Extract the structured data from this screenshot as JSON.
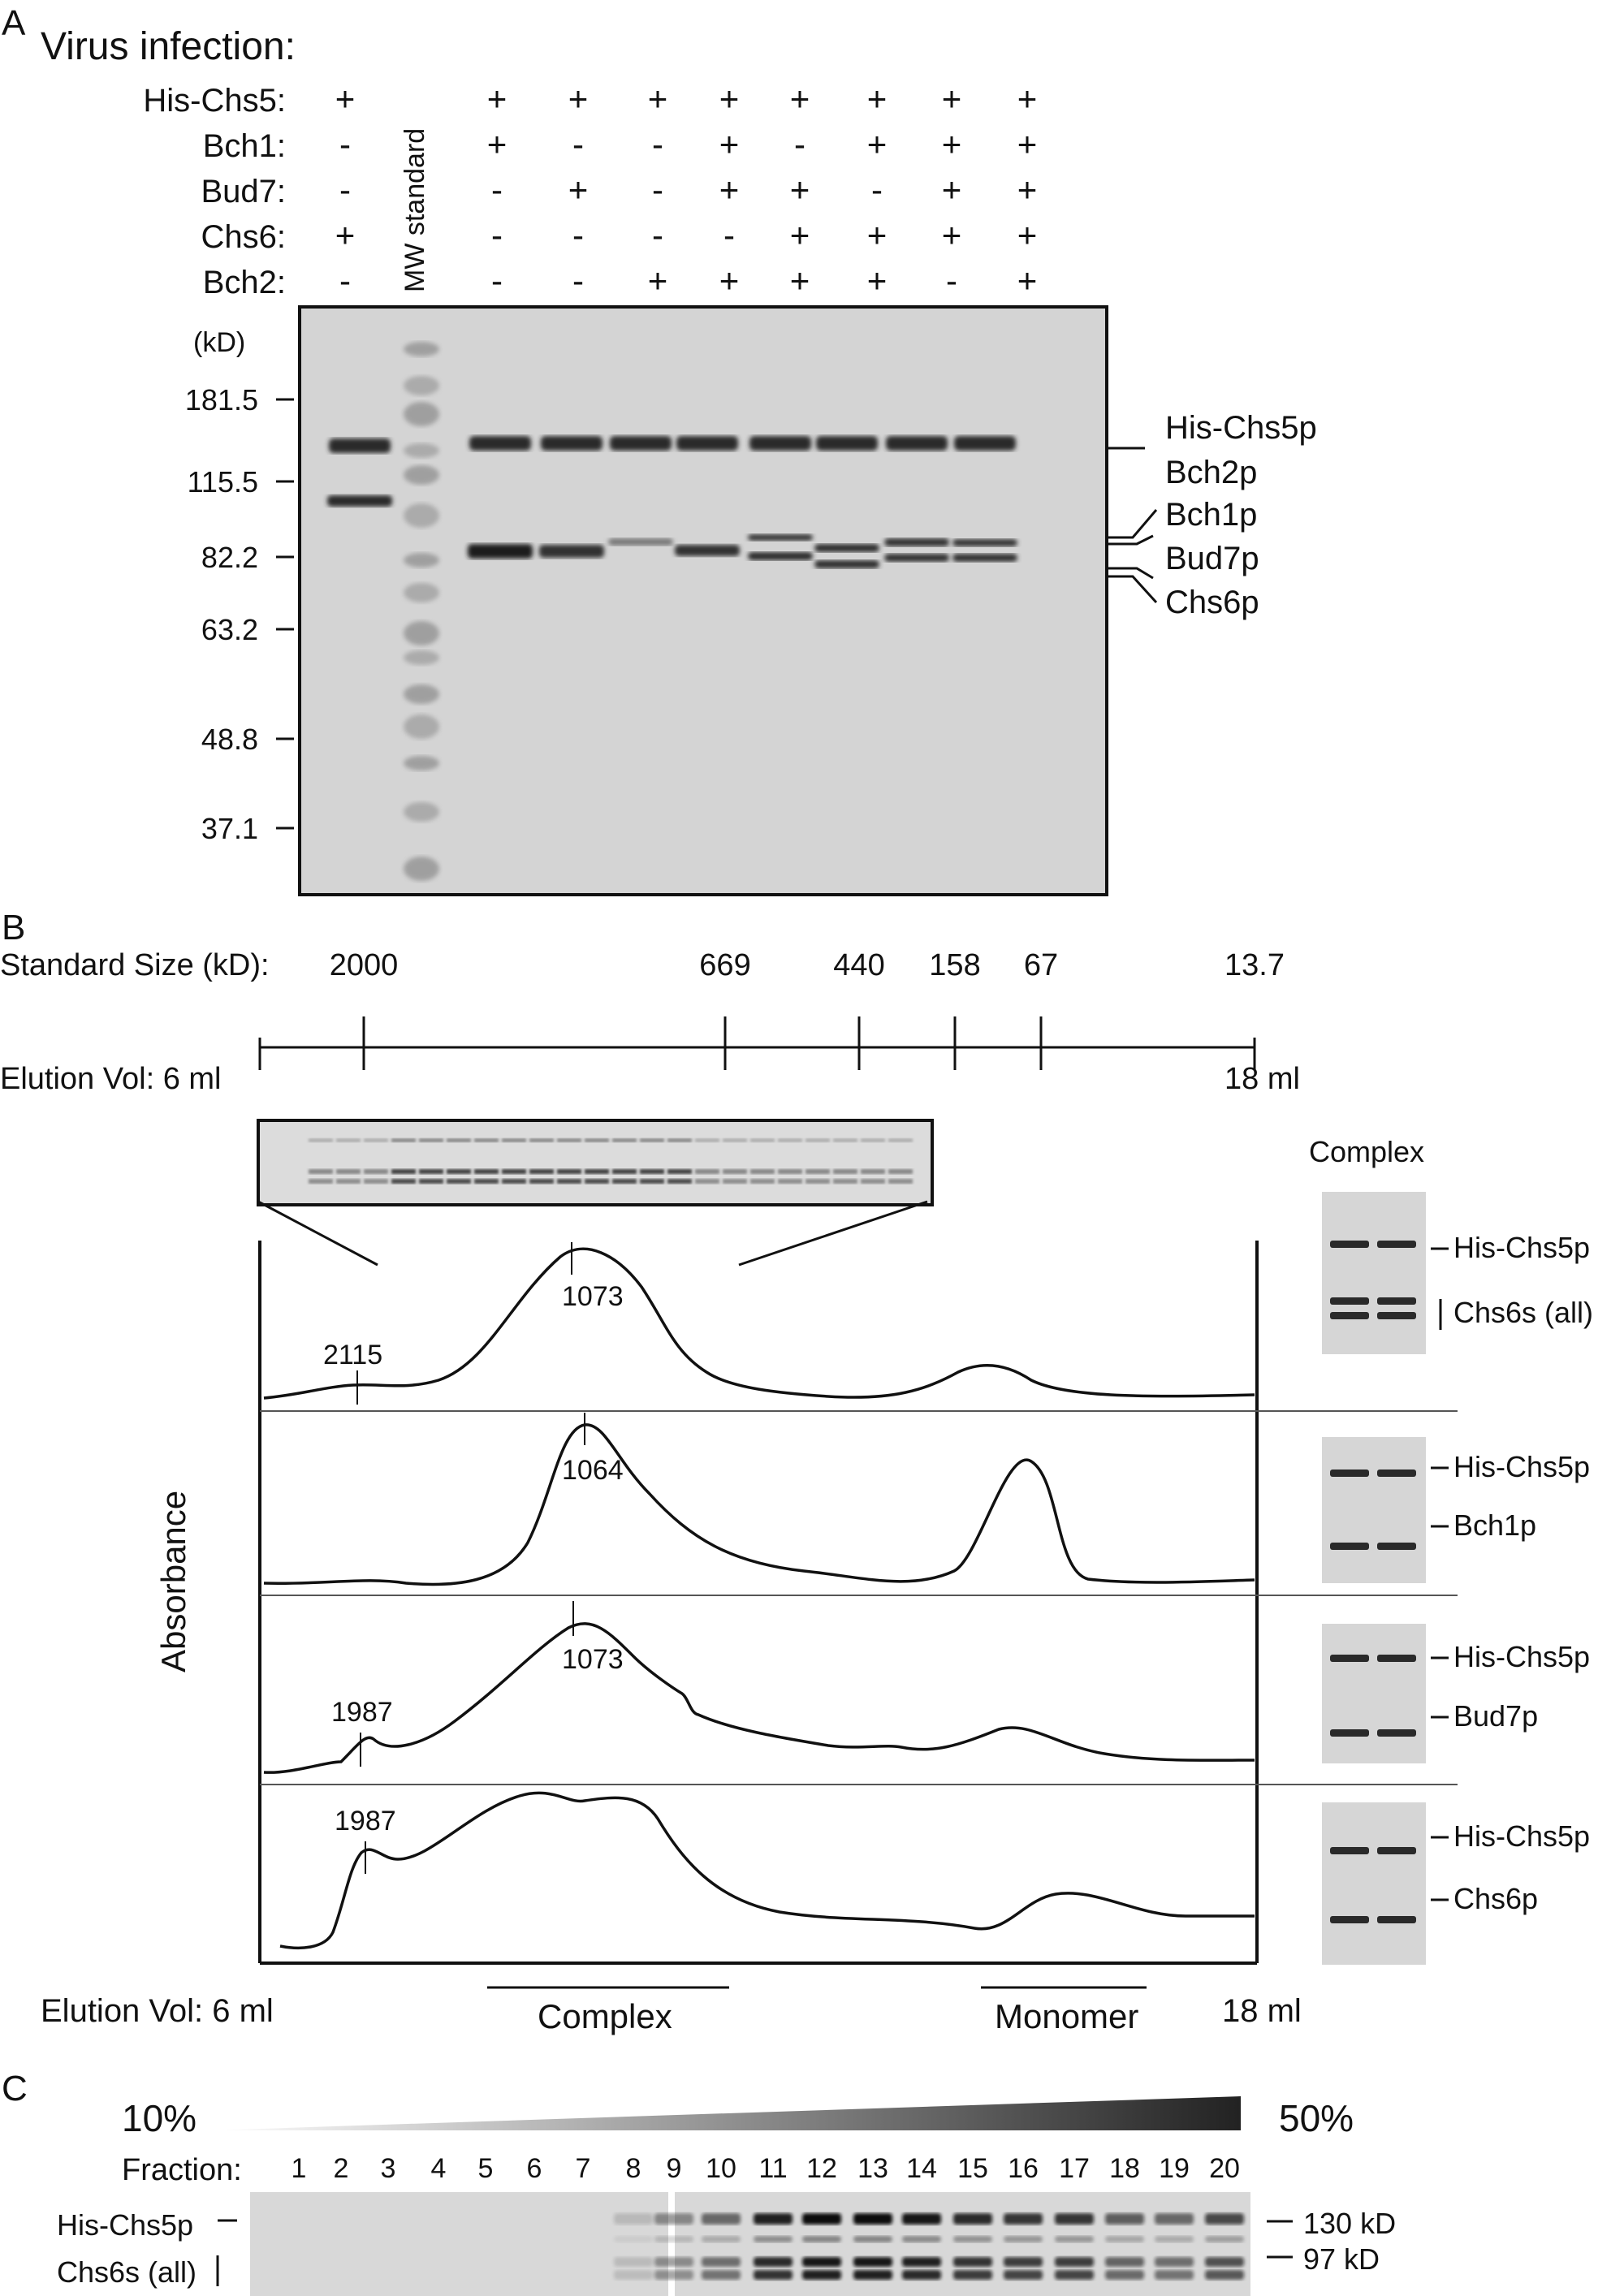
{
  "panelA": {
    "letter": "A",
    "title": "Virus infection:",
    "condition_rows": [
      {
        "label": "His-Chs5:",
        "signs": [
          "+",
          "+",
          "+",
          "+",
          "+",
          "+",
          "+",
          "+",
          "+"
        ]
      },
      {
        "label": "Bch1:",
        "signs": [
          "-",
          "+",
          "-",
          "-",
          "+",
          "-",
          "+",
          "+",
          "+"
        ]
      },
      {
        "label": "Bud7:",
        "signs": [
          "-",
          "-",
          "+",
          "-",
          "+",
          "+",
          "-",
          "+",
          "+"
        ]
      },
      {
        "label": "Chs6:",
        "signs": [
          "+",
          "-",
          "-",
          "-",
          "-",
          "+",
          "+",
          "+",
          "+"
        ]
      },
      {
        "label": "Bch2:",
        "signs": [
          "-",
          "-",
          "-",
          "+",
          "+",
          "+",
          "+",
          "-",
          "+"
        ]
      }
    ],
    "mw_standard_label": "MW standard",
    "kd_unit": "(kD)",
    "mw_markers": [
      "181.5",
      "115.5",
      "82.2",
      "63.2",
      "48.8",
      "37.1"
    ],
    "band_labels": [
      "His-Chs5p",
      "Bch2p",
      "Bch1p",
      "Bud7p",
      "Chs6p"
    ]
  },
  "panelB": {
    "letter": "B",
    "standard_size_label": "Standard Size  (kD):",
    "standard_sizes": [
      "2000",
      "669",
      "440",
      "158",
      "67",
      "13.7"
    ],
    "elution_top_left": "Elution Vol: 6 ml",
    "elution_top_right": "18 ml",
    "elution_bottom_left": "Elution Vol: 6 ml",
    "elution_bottom_right": "18 ml",
    "y_axis_label": "Absorbance",
    "complex_header": "Complex",
    "region_complex": "Complex",
    "region_monomer": "Monomer",
    "traces": [
      {
        "peak_labels": [
          "2115",
          "1073"
        ],
        "gel_labels": [
          "His-Chs5p",
          "Chs6s (all)"
        ]
      },
      {
        "peak_labels": [
          "1064"
        ],
        "gel_labels": [
          "His-Chs5p",
          "Bch1p"
        ]
      },
      {
        "peak_labels": [
          "1987",
          "1073"
        ],
        "gel_labels": [
          "His-Chs5p",
          "Bud7p"
        ]
      },
      {
        "peak_labels": [
          "1987"
        ],
        "gel_labels": [
          "His-Chs5p",
          "Chs6p"
        ]
      }
    ]
  },
  "panelC": {
    "letter": "C",
    "gradient_low": "10%",
    "gradient_high": "50%",
    "fraction_label": "Fraction:",
    "fractions": [
      "1",
      "2",
      "3",
      "4",
      "5",
      "6",
      "7",
      "8",
      "9",
      "10",
      "11",
      "12",
      "13",
      "14",
      "15",
      "16",
      "17",
      "18",
      "19",
      "20"
    ],
    "left_labels": [
      "His-Chs5p",
      "Chs6s (all)"
    ],
    "right_markers": [
      "130 kD",
      "97 kD"
    ]
  }
}
